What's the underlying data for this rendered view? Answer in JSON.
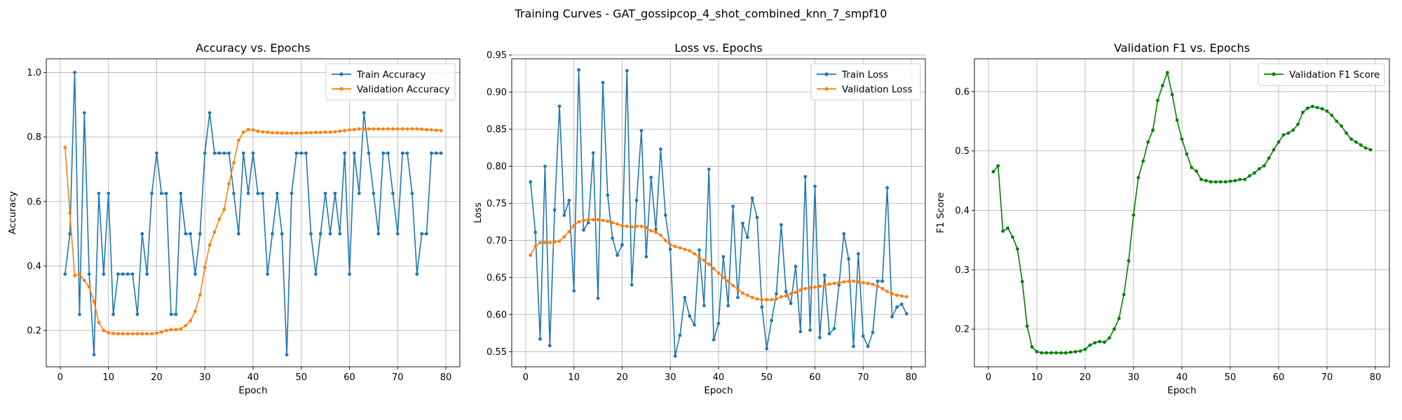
{
  "suptitle": "Training Curves - GAT_gossipcop_4_shot_combined_knn_7_smpf10",
  "chart_data": [
    {
      "type": "line",
      "title": "Accuracy vs. Epochs",
      "xlabel": "Epoch",
      "ylabel": "Accuracy",
      "xlim": [
        -2.9,
        82.9
      ],
      "ylim": [
        0.0875,
        1.0425
      ],
      "xticks": [
        0,
        10,
        20,
        30,
        40,
        50,
        60,
        70,
        80
      ],
      "yticks": [
        0.2,
        0.4,
        0.6,
        0.8,
        1.0
      ],
      "ytick_labels": [
        "0.2",
        "0.4",
        "0.6",
        "0.8",
        "1.0"
      ],
      "grid": true,
      "legend_position": "upper right",
      "x": [
        1,
        2,
        3,
        4,
        5,
        6,
        7,
        8,
        9,
        10,
        11,
        12,
        13,
        14,
        15,
        16,
        17,
        18,
        19,
        20,
        21,
        22,
        23,
        24,
        25,
        26,
        27,
        28,
        29,
        30,
        31,
        32,
        33,
        34,
        35,
        36,
        37,
        38,
        39,
        40,
        41,
        42,
        43,
        44,
        45,
        46,
        47,
        48,
        49,
        50,
        51,
        52,
        53,
        54,
        55,
        56,
        57,
        58,
        59,
        60,
        61,
        62,
        63,
        64,
        65,
        66,
        67,
        68,
        69,
        70,
        71,
        72,
        73,
        74,
        75,
        76,
        77,
        78,
        79
      ],
      "series": [
        {
          "name": "Train Accuracy",
          "color": "#1f77b4",
          "values": [
            0.375,
            0.5,
            1.0,
            0.25,
            0.875,
            0.375,
            0.125,
            0.625,
            0.375,
            0.625,
            0.25,
            0.375,
            0.375,
            0.375,
            0.375,
            0.25,
            0.5,
            0.375,
            0.625,
            0.75,
            0.625,
            0.625,
            0.25,
            0.25,
            0.625,
            0.5,
            0.5,
            0.375,
            0.5,
            0.75,
            0.875,
            0.75,
            0.75,
            0.75,
            0.75,
            0.625,
            0.5,
            0.75,
            0.625,
            0.75,
            0.625,
            0.625,
            0.375,
            0.5,
            0.625,
            0.5,
            0.125,
            0.625,
            0.75,
            0.75,
            0.75,
            0.5,
            0.375,
            0.5,
            0.625,
            0.5,
            0.625,
            0.5,
            0.75,
            0.375,
            0.75,
            0.625,
            0.875,
            0.75,
            0.625,
            0.5,
            0.75,
            0.75,
            0.625,
            0.5,
            0.75,
            0.75,
            0.625,
            0.375,
            0.5,
            0.5,
            0.75,
            0.75,
            0.75
          ]
        },
        {
          "name": "Validation Accuracy",
          "color": "#ff7f0e",
          "values": [
            0.768,
            0.565,
            0.37,
            0.375,
            0.355,
            0.335,
            0.29,
            0.225,
            0.2,
            0.193,
            0.191,
            0.19,
            0.19,
            0.19,
            0.19,
            0.19,
            0.19,
            0.19,
            0.19,
            0.192,
            0.195,
            0.2,
            0.203,
            0.203,
            0.205,
            0.215,
            0.23,
            0.26,
            0.31,
            0.395,
            0.465,
            0.505,
            0.545,
            0.575,
            0.655,
            0.72,
            0.79,
            0.815,
            0.823,
            0.822,
            0.818,
            0.816,
            0.815,
            0.813,
            0.813,
            0.812,
            0.812,
            0.812,
            0.812,
            0.812,
            0.813,
            0.813,
            0.814,
            0.814,
            0.815,
            0.815,
            0.816,
            0.818,
            0.82,
            0.822,
            0.823,
            0.825,
            0.825,
            0.825,
            0.825,
            0.825,
            0.825,
            0.825,
            0.825,
            0.825,
            0.825,
            0.825,
            0.825,
            0.825,
            0.824,
            0.823,
            0.822,
            0.821,
            0.82
          ]
        }
      ]
    },
    {
      "type": "line",
      "title": "Loss vs. Epochs",
      "xlabel": "Epoch",
      "ylabel": "Loss",
      "xlim": [
        -2.9,
        82.9
      ],
      "ylim": [
        0.5295,
        0.945
      ],
      "xticks": [
        0,
        10,
        20,
        30,
        40,
        50,
        60,
        70,
        80
      ],
      "yticks": [
        0.55,
        0.6,
        0.65,
        0.7,
        0.75,
        0.8,
        0.85,
        0.9,
        0.95
      ],
      "ytick_labels": [
        "0.55",
        "0.60",
        "0.65",
        "0.70",
        "0.75",
        "0.80",
        "0.85",
        "0.90",
        "0.95"
      ],
      "grid": true,
      "legend_position": "upper right",
      "x": [
        1,
        2,
        3,
        4,
        5,
        6,
        7,
        8,
        9,
        10,
        11,
        12,
        13,
        14,
        15,
        16,
        17,
        18,
        19,
        20,
        21,
        22,
        23,
        24,
        25,
        26,
        27,
        28,
        29,
        30,
        31,
        32,
        33,
        34,
        35,
        36,
        37,
        38,
        39,
        40,
        41,
        42,
        43,
        44,
        45,
        46,
        47,
        48,
        49,
        50,
        51,
        52,
        53,
        54,
        55,
        56,
        57,
        58,
        59,
        60,
        61,
        62,
        63,
        64,
        65,
        66,
        67,
        68,
        69,
        70,
        71,
        72,
        73,
        74,
        75,
        76,
        77,
        78,
        79
      ],
      "series": [
        {
          "name": "Train Loss",
          "color": "#1f77b4",
          "values": [
            0.779,
            0.711,
            0.567,
            0.8,
            0.558,
            0.741,
            0.881,
            0.734,
            0.754,
            0.632,
            0.93,
            0.714,
            0.724,
            0.818,
            0.622,
            0.913,
            0.761,
            0.703,
            0.68,
            0.694,
            0.929,
            0.64,
            0.754,
            0.848,
            0.678,
            0.785,
            0.715,
            0.823,
            0.734,
            0.688,
            0.544,
            0.572,
            0.623,
            0.598,
            0.586,
            0.687,
            0.612,
            0.796,
            0.566,
            0.588,
            0.678,
            0.612,
            0.746,
            0.623,
            0.723,
            0.704,
            0.757,
            0.731,
            0.61,
            0.554,
            0.592,
            0.628,
            0.721,
            0.631,
            0.615,
            0.665,
            0.577,
            0.786,
            0.579,
            0.773,
            0.569,
            0.653,
            0.574,
            0.581,
            0.64,
            0.709,
            0.675,
            0.557,
            0.682,
            0.571,
            0.557,
            0.576,
            0.645,
            0.645,
            0.771,
            0.597,
            0.61,
            0.614,
            0.601
          ]
        },
        {
          "name": "Validation Loss",
          "color": "#ff7f0e",
          "values": [
            0.68,
            0.692,
            0.697,
            0.697,
            0.697,
            0.698,
            0.699,
            0.705,
            0.712,
            0.72,
            0.725,
            0.727,
            0.728,
            0.728,
            0.728,
            0.727,
            0.726,
            0.724,
            0.722,
            0.72,
            0.719,
            0.718,
            0.719,
            0.719,
            0.717,
            0.713,
            0.711,
            0.707,
            0.7,
            0.694,
            0.692,
            0.69,
            0.688,
            0.686,
            0.682,
            0.677,
            0.673,
            0.668,
            0.662,
            0.656,
            0.65,
            0.645,
            0.639,
            0.634,
            0.629,
            0.626,
            0.623,
            0.621,
            0.62,
            0.62,
            0.62,
            0.621,
            0.624,
            0.625,
            0.628,
            0.63,
            0.633,
            0.635,
            0.636,
            0.637,
            0.638,
            0.639,
            0.641,
            0.642,
            0.643,
            0.644,
            0.645,
            0.645,
            0.644,
            0.643,
            0.642,
            0.641,
            0.638,
            0.635,
            0.631,
            0.628,
            0.626,
            0.625,
            0.624
          ]
        }
      ]
    },
    {
      "type": "line",
      "title": "Validation F1 vs. Epochs",
      "xlabel": "Epoch",
      "ylabel": "F1 Score",
      "xlim": [
        -2.9,
        82.9
      ],
      "ylim": [
        0.1365,
        0.6552
      ],
      "xticks": [
        0,
        10,
        20,
        30,
        40,
        50,
        60,
        70,
        80
      ],
      "yticks": [
        0.2,
        0.3,
        0.4,
        0.5,
        0.6
      ],
      "ytick_labels": [
        "0.2",
        "0.3",
        "0.4",
        "0.5",
        "0.6"
      ],
      "grid": true,
      "legend_position": "upper right",
      "x": [
        1,
        2,
        3,
        4,
        5,
        6,
        7,
        8,
        9,
        10,
        11,
        12,
        13,
        14,
        15,
        16,
        17,
        18,
        19,
        20,
        21,
        22,
        23,
        24,
        25,
        26,
        27,
        28,
        29,
        30,
        31,
        32,
        33,
        34,
        35,
        36,
        37,
        38,
        39,
        40,
        41,
        42,
        43,
        44,
        45,
        46,
        47,
        48,
        49,
        50,
        51,
        52,
        53,
        54,
        55,
        56,
        57,
        58,
        59,
        60,
        61,
        62,
        63,
        64,
        65,
        66,
        67,
        68,
        69,
        70,
        71,
        72,
        73,
        74,
        75,
        76,
        77,
        78,
        79
      ],
      "series": [
        {
          "name": "Validation F1 Score",
          "color": "#008000",
          "values": [
            0.465,
            0.475,
            0.365,
            0.37,
            0.355,
            0.335,
            0.28,
            0.205,
            0.17,
            0.162,
            0.16,
            0.16,
            0.16,
            0.16,
            0.16,
            0.16,
            0.161,
            0.162,
            0.163,
            0.166,
            0.173,
            0.177,
            0.179,
            0.178,
            0.185,
            0.2,
            0.218,
            0.258,
            0.315,
            0.392,
            0.455,
            0.483,
            0.515,
            0.535,
            0.585,
            0.61,
            0.632,
            0.595,
            0.552,
            0.52,
            0.495,
            0.472,
            0.466,
            0.452,
            0.45,
            0.448,
            0.448,
            0.448,
            0.448,
            0.449,
            0.45,
            0.452,
            0.452,
            0.458,
            0.463,
            0.47,
            0.475,
            0.488,
            0.502,
            0.515,
            0.527,
            0.53,
            0.535,
            0.545,
            0.565,
            0.572,
            0.575,
            0.573,
            0.571,
            0.567,
            0.56,
            0.55,
            0.542,
            0.53,
            0.52,
            0.515,
            0.51,
            0.505,
            0.502
          ]
        }
      ]
    }
  ]
}
